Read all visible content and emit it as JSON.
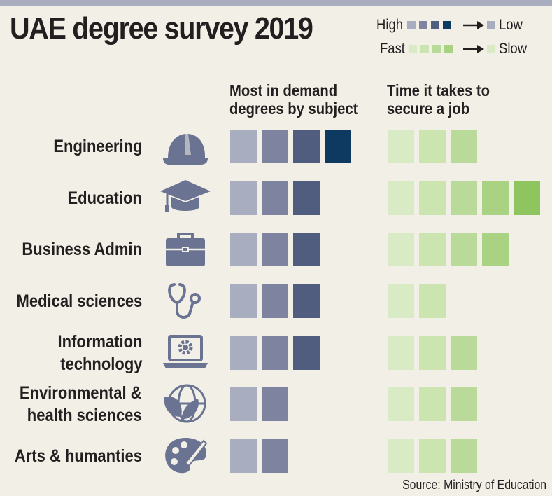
{
  "header": {
    "title": "UAE degree survey 2019"
  },
  "legend": {
    "demand": {
      "high_label": "High",
      "low_label": "Low",
      "colors": [
        "#a9adc0",
        "#7e84a0",
        "#515d7e",
        "#0e3a62"
      ],
      "low_color": "#a9adc0"
    },
    "time": {
      "fast_label": "Fast",
      "slow_label": "Slow",
      "colors": [
        "#d8ebc4",
        "#cbe4b0",
        "#b9da98",
        "#a9d283",
        "#8fc55f"
      ],
      "fast_color": "#d8ebc4",
      "slow_color": "#d8ebc4"
    }
  },
  "columns": {
    "demand_heading": [
      "Most in demand",
      "degrees by subject"
    ],
    "time_heading": [
      "Time it takes to",
      "secure a job"
    ]
  },
  "chart_data": {
    "type": "table",
    "title": "UAE degree survey 2019",
    "series": [
      {
        "name": "Most in demand degrees by subject",
        "scale": "1 = low, 4 = high"
      },
      {
        "name": "Time it takes to secure a job",
        "scale": "1 = fast, 5 = slow"
      }
    ],
    "rows": [
      {
        "label": [
          "Engineering"
        ],
        "icon": "hard-hat-icon",
        "demand": 4,
        "time": 3
      },
      {
        "label": [
          "Education"
        ],
        "icon": "graduation-cap-icon",
        "demand": 3,
        "time": 5
      },
      {
        "label": [
          "Business Admin"
        ],
        "icon": "briefcase-icon",
        "demand": 3,
        "time": 4
      },
      {
        "label": [
          "Medical sciences"
        ],
        "icon": "stethoscope-icon",
        "demand": 3,
        "time": 2
      },
      {
        "label": [
          "Information",
          "technology"
        ],
        "icon": "laptop-gear-icon",
        "demand": 3,
        "time": 3
      },
      {
        "label": [
          "Environmental &",
          "health sciences"
        ],
        "icon": "globe-leaf-icon",
        "demand": 2,
        "time": 3
      },
      {
        "label": [
          "Arts & humanties"
        ],
        "icon": "palette-icon",
        "demand": 2,
        "time": 3
      }
    ]
  },
  "source": "Source: Ministry of Education"
}
